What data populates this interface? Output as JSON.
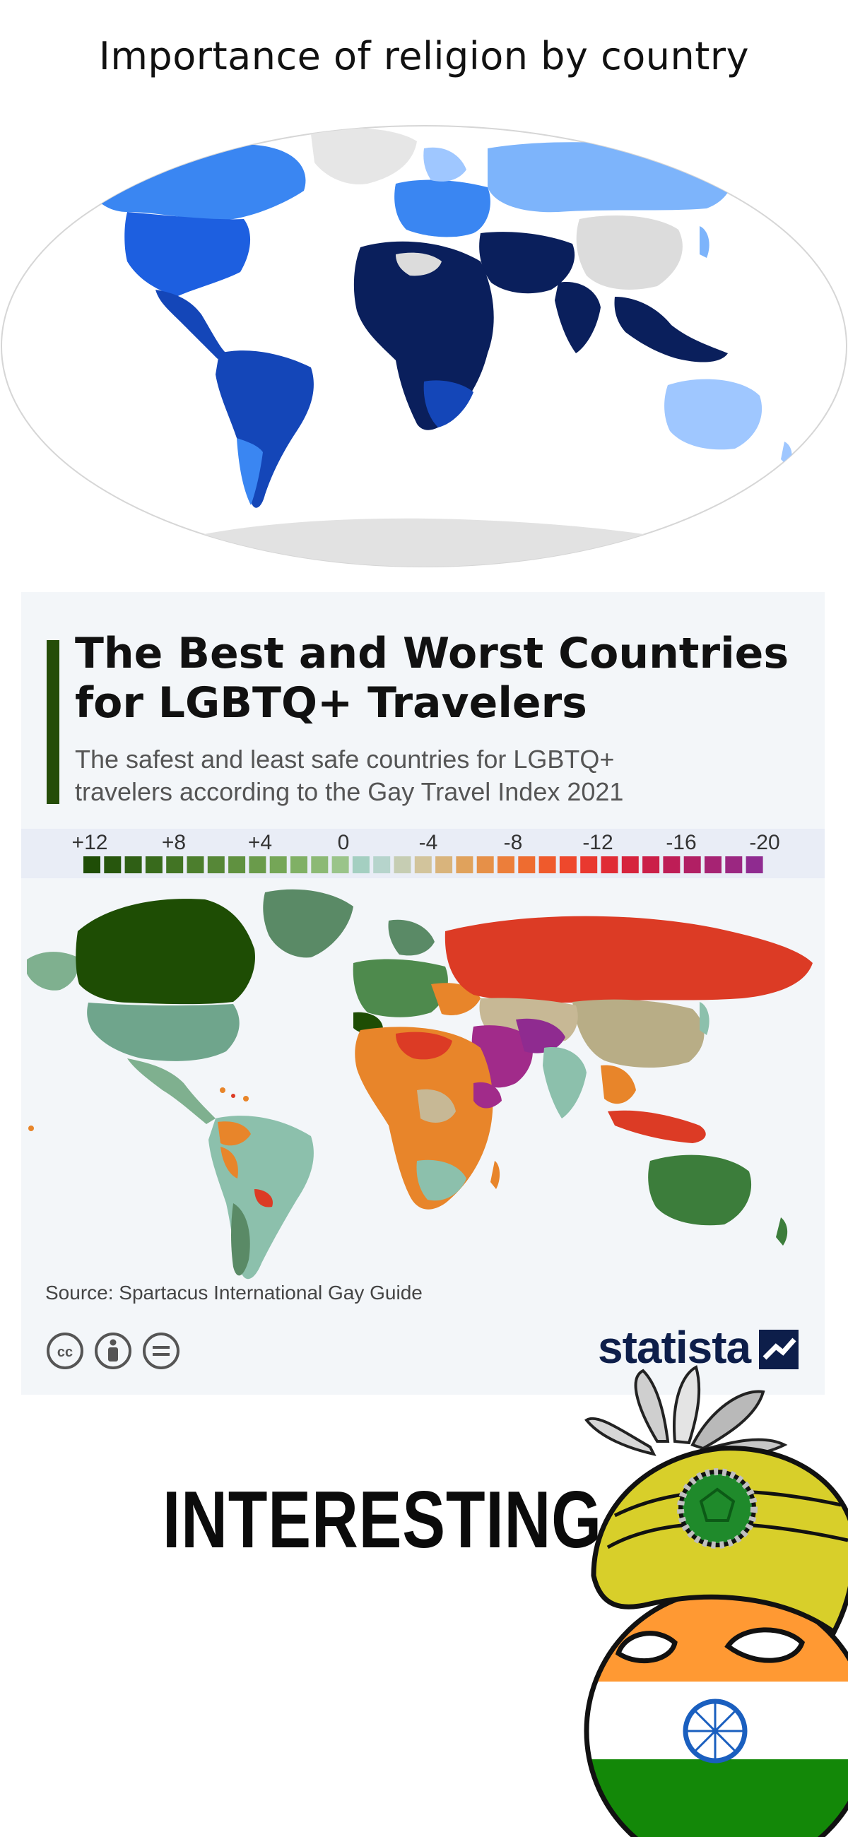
{
  "top_title": "Importance of religion by country",
  "panel": {
    "title_lines": [
      "The Best and Worst Countries",
      "for LGBTQ+ Travelers"
    ],
    "subtitle_lines": [
      "The safest and least safe countries for LGBTQ+",
      "travelers according to the Gay Travel Index 2021"
    ],
    "source": "Source: Spartacus International Gay Guide",
    "logo_text": "statista",
    "legend": {
      "tick_labels": [
        "+12",
        "+8",
        "+4",
        "0",
        "-4",
        "-8",
        "-12",
        "-16",
        "-20"
      ],
      "swatches": [
        "#1f4d06",
        "#27560d",
        "#2f5f15",
        "#386a1c",
        "#427424",
        "#4c7e2d",
        "#568737",
        "#609140",
        "#6a9b4b",
        "#75a657",
        "#80b065",
        "#8cb975",
        "#9ac48a",
        "#a4cfc1",
        "#b6d4cc",
        "#c6cdb3",
        "#d2c49c",
        "#d9b47c",
        "#e0a25c",
        "#e69048",
        "#ec7e3a",
        "#ee6c30",
        "#ef5a2c",
        "#ee482c",
        "#e9382f",
        "#e02c35",
        "#d6233d",
        "#cb1f48",
        "#be1d56",
        "#b11f64",
        "#a62373",
        "#9b2781",
        "#8f2b90"
      ]
    },
    "icons": [
      "cc-icon",
      "attribution-icon",
      "no-derivatives-icon"
    ]
  },
  "meme": {
    "caption": "INTERESTING",
    "character": "India countryball with turban"
  },
  "map1": {
    "colors": {
      "very_high": "#0a1f5c",
      "high": "#1446b8",
      "medium_high": "#1d5fe0",
      "medium": "#3a86f2",
      "low": "#7db4fb",
      "very_low": "#9fc7ff",
      "no_data": "#dcdcdc"
    }
  },
  "map2": {
    "colors": {
      "canada": "#1e4d04",
      "greenland": "#5a8a66",
      "usa": "#6fa58c",
      "russia": "#dc3b25",
      "china": "#b8ad86",
      "africa_orange": "#e8852a",
      "middle_east": "#a12b8a",
      "south_america": "#8cc0ac",
      "australia": "#3c7d3b",
      "europe": "#4e8a4d"
    }
  }
}
